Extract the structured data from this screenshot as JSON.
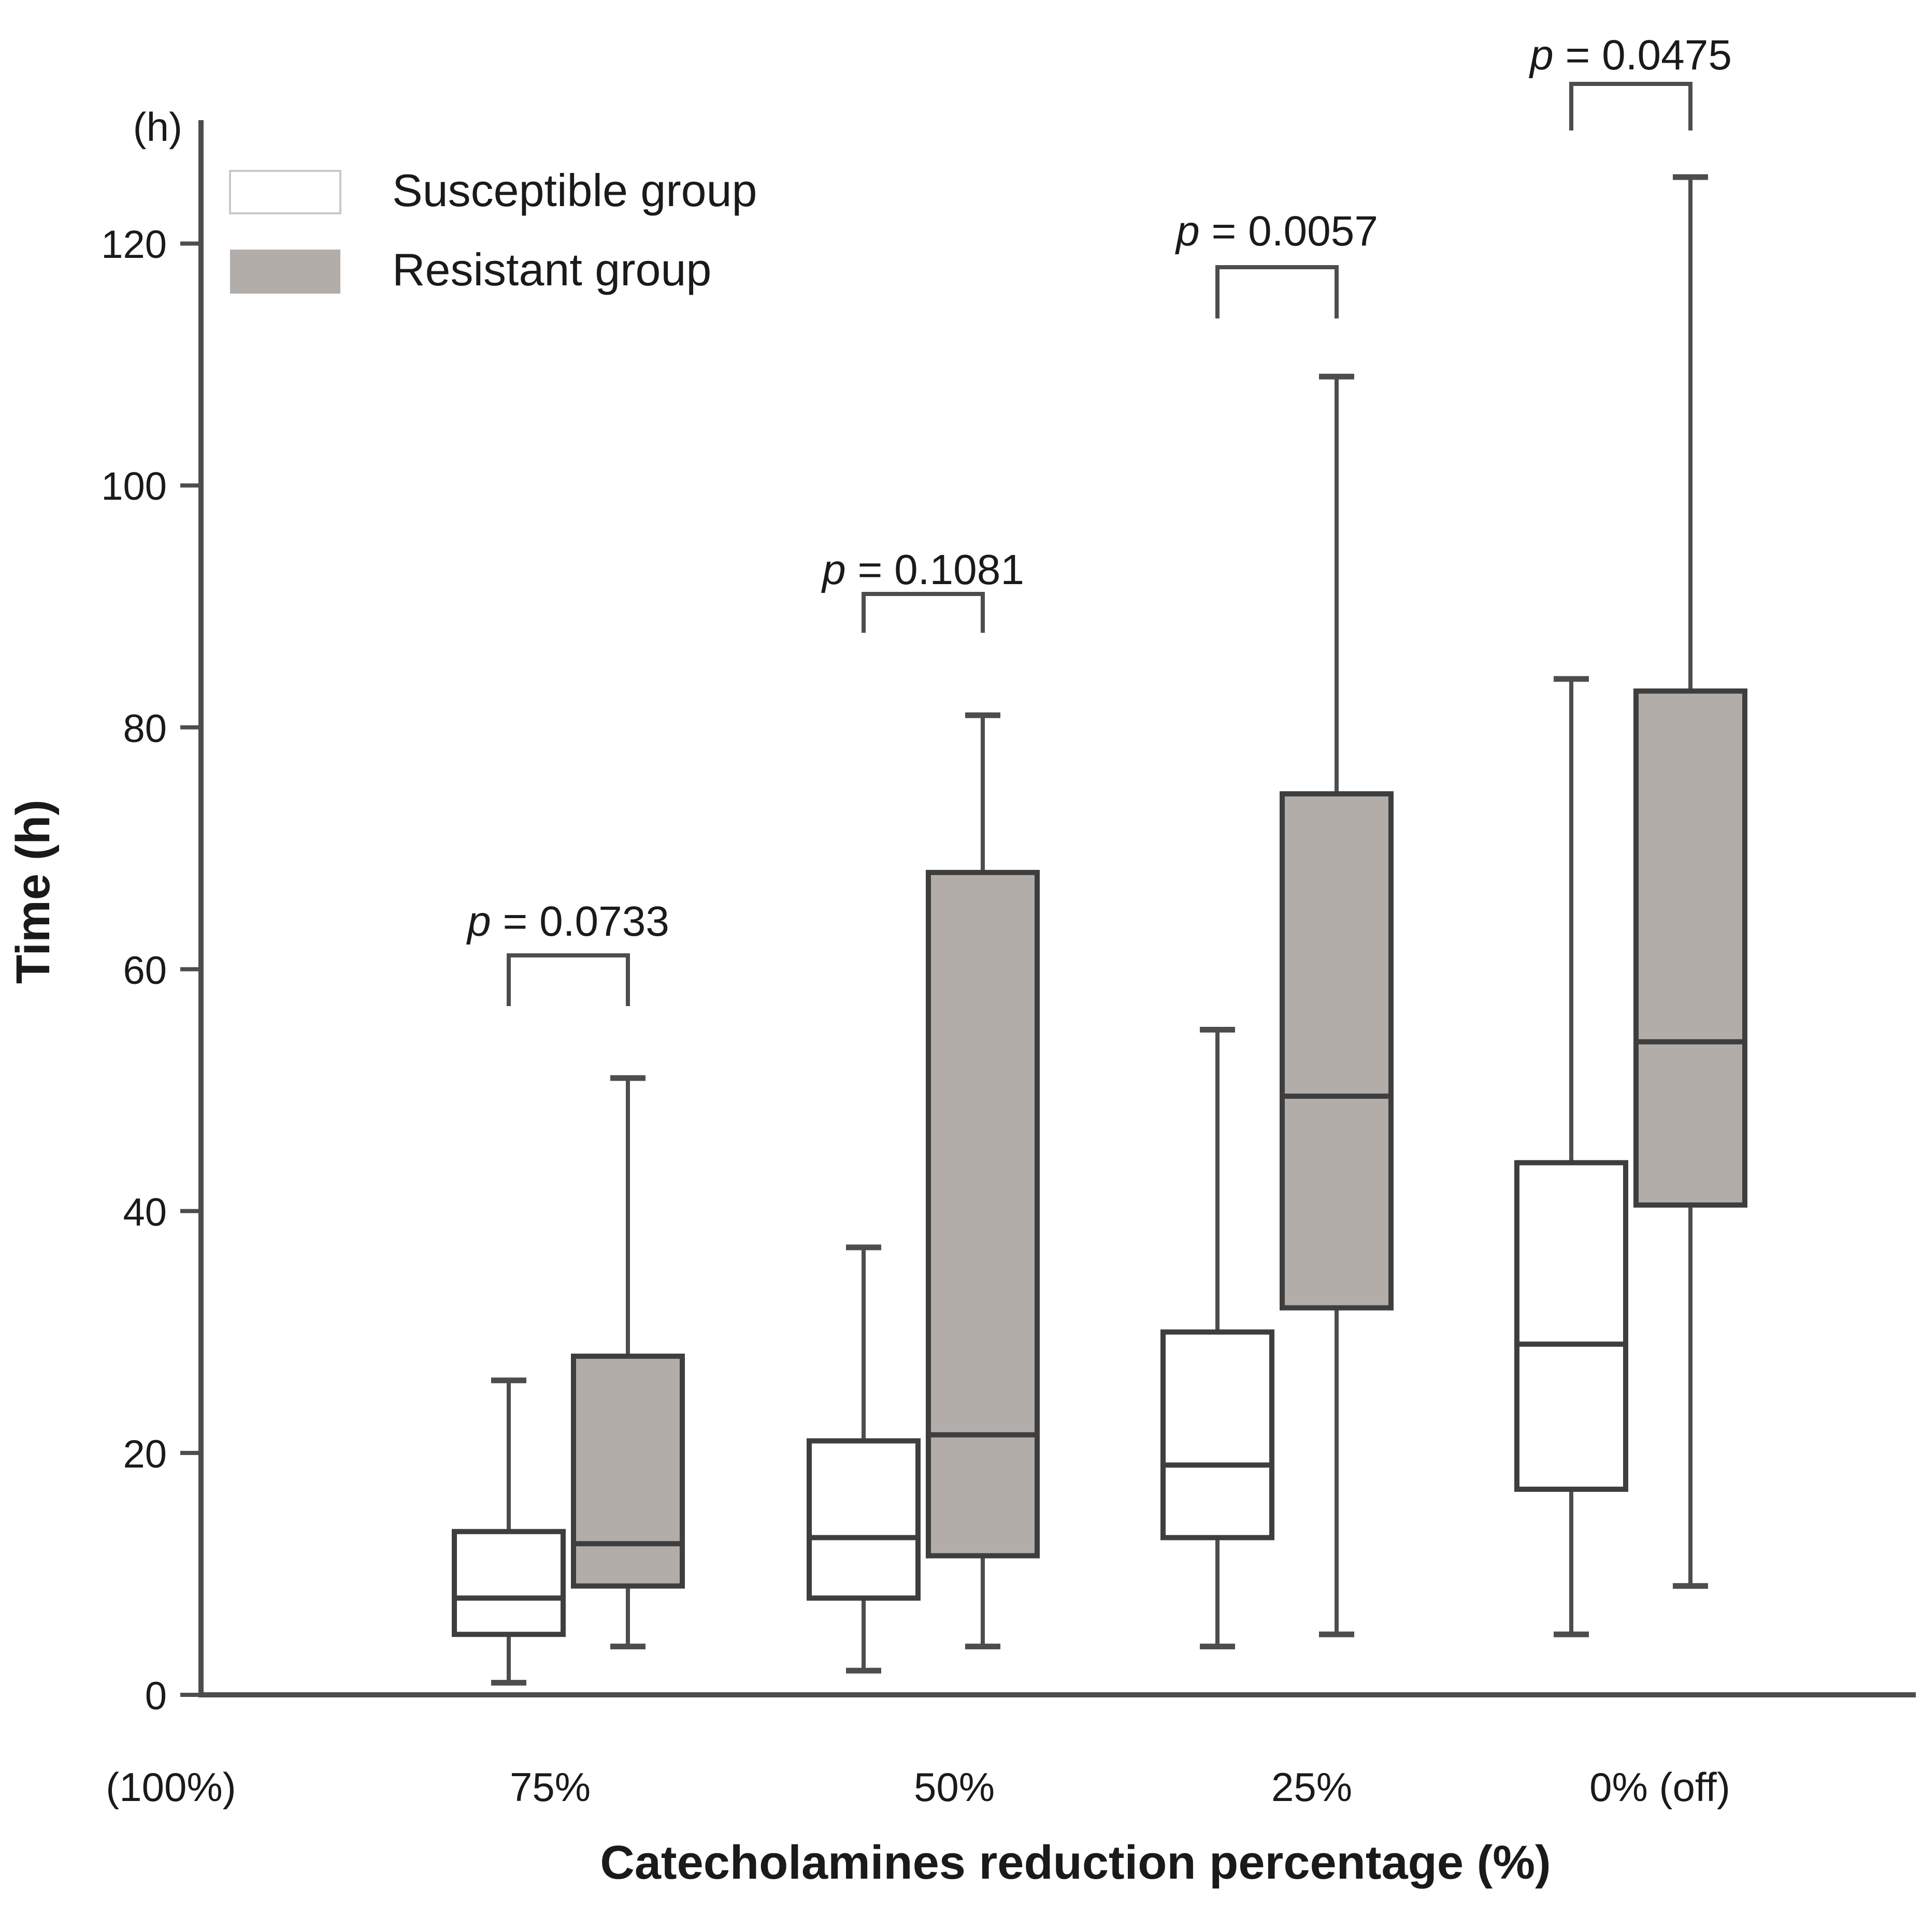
{
  "chart_data": {
    "type": "boxplot",
    "y_axis": {
      "unit_label": "(h)",
      "axis_label": "Time (h)",
      "ticks": [
        0,
        20,
        40,
        60,
        80,
        100,
        120
      ],
      "range": [
        0,
        130
      ]
    },
    "x_axis": {
      "axis_label": "Catecholamines reduction percentage (%)",
      "baseline_label": "(100%)",
      "categories": [
        "75%",
        "50%",
        "25%",
        "0% (off)"
      ]
    },
    "legend": [
      {
        "label": "Susceptible group",
        "fill": "#ffffff"
      },
      {
        "label": "Resistant group",
        "fill": "#b2ada9"
      }
    ],
    "series": [
      {
        "name": "Susceptible group",
        "fill": "#ffffff",
        "boxes": [
          {
            "category": "75%",
            "min": 1,
            "q1": 5,
            "median": 8,
            "q3": 13.5,
            "max": 26
          },
          {
            "category": "50%",
            "min": 2,
            "q1": 8,
            "median": 13,
            "q3": 21,
            "max": 37
          },
          {
            "category": "25%",
            "min": 4,
            "q1": 13,
            "median": 19,
            "q3": 30,
            "max": 55
          },
          {
            "category": "0% (off)",
            "min": 5,
            "q1": 17,
            "median": 29,
            "q3": 44,
            "max": 84
          }
        ]
      },
      {
        "name": "Resistant group",
        "fill": "#b2ada9",
        "boxes": [
          {
            "category": "75%",
            "min": 4,
            "q1": 9,
            "median": 12.5,
            "q3": 28,
            "max": 51
          },
          {
            "category": "50%",
            "min": 4,
            "q1": 11.5,
            "median": 21.5,
            "q3": 68,
            "max": 81
          },
          {
            "category": "25%",
            "min": 5,
            "q1": 32,
            "median": 49.5,
            "q3": 74.5,
            "max": 109
          },
          {
            "category": "0% (off)",
            "min": 9,
            "q1": 40.5,
            "median": 54,
            "q3": 83,
            "max": 125.5
          }
        ]
      }
    ],
    "p_values": [
      {
        "category": "75%",
        "label": "p = 0.0733",
        "value": 0.0733
      },
      {
        "category": "50%",
        "label": "p = 0.1081",
        "value": 0.1081
      },
      {
        "category": "25%",
        "label": "p = 0.0057",
        "value": 0.0057
      },
      {
        "category": "0% (off)",
        "label": "p = 0.0475",
        "value": 0.0475
      }
    ],
    "colors": {
      "line": "#4d4d4d",
      "box_border": "#3e3e3e",
      "text": "#1a1a1a",
      "susceptible_fill": "#ffffff",
      "resistant_fill": "#b2ada9"
    },
    "legend_position": "top-left",
    "grid": "off"
  }
}
